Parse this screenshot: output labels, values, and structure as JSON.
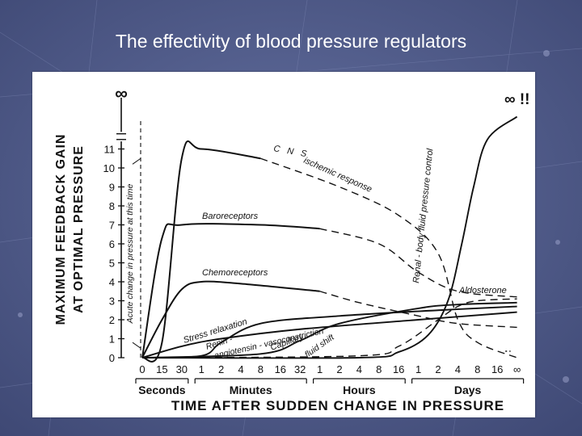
{
  "slide": {
    "title": "The effectivity of blood pressure regulators",
    "background_color": "#4f5a86"
  },
  "chart_data": {
    "type": "line",
    "title": "",
    "ylabel_line1": "MAXIMUM FEEDBACK GAIN",
    "ylabel_line2": "AT OPTIMAL PRESSURE",
    "xlabel": "TIME AFTER SUDDEN CHANGE IN PRESSURE",
    "ylim": [
      0,
      11
    ],
    "y_ticks": [
      "0",
      "1",
      "2",
      "3",
      "4",
      "5",
      "6",
      "7",
      "8",
      "9",
      "10",
      "11"
    ],
    "y_infinity_label": "∞",
    "x_ticks": [
      "0",
      "15",
      "30",
      "1",
      "2",
      "4",
      "8",
      "16",
      "32",
      "1",
      "2",
      "4",
      "8",
      "16",
      "1",
      "2",
      "4",
      "8",
      "16",
      "∞"
    ],
    "x_groups": [
      {
        "label": "Seconds",
        "ticks": [
          "0",
          "15",
          "30"
        ]
      },
      {
        "label": "Minutes",
        "ticks": [
          "1",
          "2",
          "4",
          "8",
          "16",
          "32"
        ]
      },
      {
        "label": "Hours",
        "ticks": [
          "1",
          "2",
          "4",
          "8",
          "16"
        ]
      },
      {
        "label": "Days",
        "ticks": [
          "1",
          "2",
          "4",
          "8",
          "16",
          "∞"
        ]
      }
    ],
    "acute_label": "Acute change in pressure at this time",
    "series": [
      {
        "name": "CNS ischemic response",
        "style": "solid-then-dashed",
        "points": [
          [
            0,
            0
          ],
          [
            1,
            0.8
          ],
          [
            2,
            10.5
          ],
          [
            3,
            11.0
          ],
          [
            6,
            10.5
          ],
          [
            10,
            9.0
          ],
          [
            13,
            7.5
          ],
          [
            15,
            5.5
          ],
          [
            16,
            2.0
          ],
          [
            17,
            0.8
          ],
          [
            19,
            0
          ]
        ]
      },
      {
        "name": "Baroreceptors",
        "style": "solid-then-dashed",
        "points": [
          [
            0,
            0
          ],
          [
            1,
            6.3
          ],
          [
            2,
            7.0
          ],
          [
            6,
            7.0
          ],
          [
            9,
            6.8
          ],
          [
            12,
            6.0
          ],
          [
            14,
            4.5
          ],
          [
            16,
            3.5
          ],
          [
            19,
            3.2
          ]
        ]
      },
      {
        "name": "Chemoreceptors",
        "style": "solid-then-dashed",
        "points": [
          [
            0,
            0
          ],
          [
            1,
            2.0
          ],
          [
            2,
            3.6
          ],
          [
            3,
            4.0
          ],
          [
            5,
            3.9
          ],
          [
            9,
            3.5
          ],
          [
            11,
            2.9
          ],
          [
            14,
            2.2
          ],
          [
            16,
            1.8
          ],
          [
            19,
            1.6
          ]
        ]
      },
      {
        "name": "Stress relaxation",
        "style": "solid",
        "points": [
          [
            0,
            0
          ],
          [
            2,
            0.6
          ],
          [
            4,
            1.0
          ],
          [
            8,
            1.5
          ],
          [
            14,
            2.0
          ],
          [
            19,
            2.4
          ]
        ]
      },
      {
        "name": "Renin-angiotensin-vasoconstriction",
        "style": "solid",
        "points": [
          [
            0,
            0
          ],
          [
            3,
            0.1
          ],
          [
            4,
            0.8
          ],
          [
            6,
            1.8
          ],
          [
            10,
            2.2
          ],
          [
            15,
            2.5
          ],
          [
            19,
            2.7
          ]
        ]
      },
      {
        "name": "Capillary fluid shift",
        "style": "solid",
        "points": [
          [
            0,
            0
          ],
          [
            6,
            0.2
          ],
          [
            8,
            0.9
          ],
          [
            10,
            1.8
          ],
          [
            14,
            2.6
          ],
          [
            16,
            2.8
          ],
          [
            19,
            2.9
          ]
        ]
      },
      {
        "name": "Aldosterone",
        "style": "dashed",
        "points": [
          [
            0,
            0
          ],
          [
            11,
            0.1
          ],
          [
            13,
            0.6
          ],
          [
            15,
            2.0
          ],
          [
            16,
            2.7
          ],
          [
            17,
            3.0
          ],
          [
            19,
            3.1
          ]
        ]
      },
      {
        "name": "Renal-body fluid pressure control",
        "style": "solid",
        "points": [
          [
            0,
            0
          ],
          [
            11,
            0
          ],
          [
            13,
            0.3
          ],
          [
            14.5,
            1.2
          ],
          [
            15.5,
            3.0
          ],
          [
            16.2,
            6.0
          ],
          [
            16.8,
            9.0
          ],
          [
            17.5,
            11.5
          ],
          [
            19,
            12.7
          ]
        ]
      }
    ],
    "annotations": {
      "cns": "C N S",
      "ischemic": "ischemic response",
      "baro": "Baroreceptors",
      "chemo": "Chemoreceptors",
      "stress": "Stress relaxation",
      "renin1": "Renin -",
      "renin2": "angiotensin - vasoconstriction",
      "capillary": "Capillary",
      "fluid_shift": "fluid shift",
      "aldosterone": "Aldosterone",
      "renal": "Renal - body fluid pressure control",
      "renal_infinity": "∞ !!"
    }
  }
}
